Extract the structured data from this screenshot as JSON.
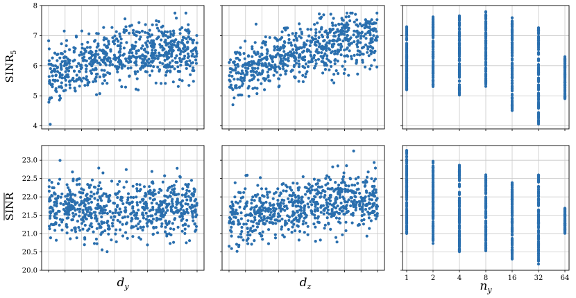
{
  "chart_data": [
    {
      "type": "scatter",
      "ylabel": "SINR_5",
      "xlabel": "",
      "ylim": [
        3.9,
        8.0
      ],
      "yticks": [
        4,
        5,
        6,
        7,
        8
      ],
      "xticks_unlabeled": 10,
      "grid": true,
      "color": "#2a6fae",
      "points": []
    },
    {
      "type": "scatter",
      "ylabel": "",
      "xlabel": "",
      "ylim": [
        3.9,
        8.0
      ],
      "yticks": [
        4,
        5,
        6,
        7,
        8
      ],
      "xticks_unlabeled": 10,
      "grid": true,
      "color": "#2a6fae",
      "points": []
    },
    {
      "type": "scatter",
      "ylabel": "",
      "xlabel": "",
      "ylim": [
        3.9,
        8.0
      ],
      "yticks": [
        4,
        5,
        6,
        7,
        8
      ],
      "x_categories": [
        "1",
        "2",
        "4",
        "8",
        "16",
        "32",
        "64"
      ],
      "grid": true,
      "color": "#2a6fae",
      "points": []
    },
    {
      "type": "scatter",
      "ylabel": "SINR (mean)",
      "xlabel": "d_y",
      "ylim": [
        20.0,
        23.4
      ],
      "yticks": [
        20.0,
        20.5,
        21.0,
        21.5,
        22.0,
        22.5,
        23.0
      ],
      "xticks_unlabeled": 10,
      "grid": true,
      "color": "#2a6fae",
      "points": []
    },
    {
      "type": "scatter",
      "ylabel": "",
      "xlabel": "d_z",
      "ylim": [
        20.0,
        23.4
      ],
      "yticks": [
        20.0,
        20.5,
        21.0,
        21.5,
        22.0,
        22.5,
        23.0
      ],
      "xticks_unlabeled": 10,
      "grid": true,
      "color": "#2a6fae",
      "points": []
    },
    {
      "type": "scatter",
      "ylabel": "",
      "xlabel": "n_y",
      "ylim": [
        20.0,
        23.4
      ],
      "yticks": [
        20.0,
        20.5,
        21.0,
        21.5,
        22.0,
        22.5,
        23.0
      ],
      "x_categories": [
        "1",
        "2",
        "4",
        "8",
        "16",
        "32",
        "64"
      ],
      "grid": true,
      "color": "#2a6fae",
      "points": []
    }
  ],
  "labels": {
    "row1_ylabel_main": "SINR",
    "row1_ylabel_sub": "5",
    "row2_ylabel": "SINR",
    "x1": "d",
    "x1_sub": "y",
    "x2": "d",
    "x2_sub": "z",
    "x3": "n",
    "x3_sub": "y"
  }
}
